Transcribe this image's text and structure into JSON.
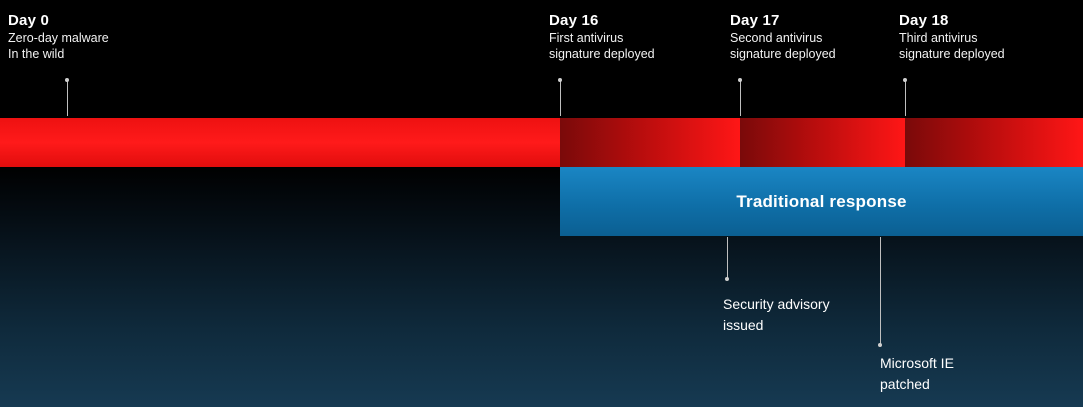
{
  "milestones": [
    {
      "day": "Day 0",
      "lines": [
        "Zero-day malware",
        "In the wild"
      ]
    },
    {
      "day": "Day 16",
      "lines": [
        "First antivirus",
        "signature deployed"
      ]
    },
    {
      "day": "Day 17",
      "lines": [
        "Second antivirus",
        "signature deployed"
      ]
    },
    {
      "day": "Day 18",
      "lines": [
        "Third antivirus",
        "signature deployed"
      ]
    }
  ],
  "response": {
    "label": "Traditional response"
  },
  "events": [
    {
      "lines": [
        "Security advisory",
        "issued"
      ]
    },
    {
      "lines": [
        "Microsoft IE",
        "patched"
      ]
    }
  ],
  "colors": {
    "background": "#000000",
    "band_red": "#ff1a1a",
    "band_dark_red": "#7a0a0a",
    "response_blue": "#1a86c4"
  }
}
